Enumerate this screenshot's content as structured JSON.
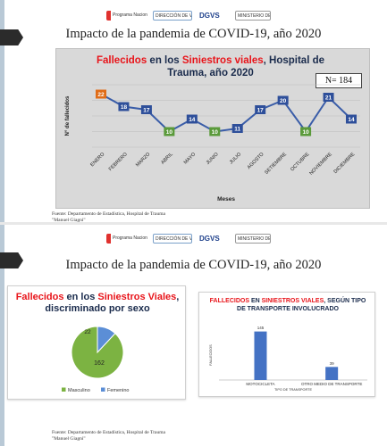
{
  "slide1": {
    "logos": [
      "Programa Nacional LESIONES DE CAUSAS EXTERNAS",
      "DIRECCIÓN DE VIGILANCIA DE ENFERMEDADES NO TRANSMISIBLES",
      "DGVS",
      "MINISTERIO DE SALUD"
    ],
    "title": "Impacto de la pandemia de COVID-19, año 2020",
    "footnote_line1": "Fuente: Departamento de Estadística, Hospital de Trauma",
    "footnote_line2": "\"Manuel Giagni\""
  },
  "slide2": {
    "logos": [
      "Programa Nacional LESIONES DE CAUSAS EXTERNAS",
      "DIRECCIÓN DE VIGILANCIA DE ENFERMEDADES NO TRANSMISIBLES",
      "DGVS",
      "MINISTERIO DE SALUD"
    ],
    "title": "Impacto de la pandemia de COVID-19, año 2020",
    "footnote_line1": "Fuente: Departamento de Estadística, Hospital de Trauma",
    "footnote_line2": "\"Manuel Giagni\""
  },
  "chart_data": [
    {
      "type": "line",
      "title_parts": {
        "red1": "Fallecidos",
        "navy1": " en los ",
        "red2": "Siniestros viales",
        "navy2": ", Hospital de Trauma, año 2020"
      },
      "badge": "N= 184",
      "xlabel": "Meses",
      "ylabel": "N° de fallecidos",
      "categories": [
        "ENERO",
        "FEBRERO",
        "MARZO",
        "ABRIL",
        "MAYO",
        "JUNIO",
        "JULIO",
        "AGOSTO",
        "SETIEMBRE",
        "OCTUBRE",
        "NOVIEMBRE",
        "DICIEMBRE"
      ],
      "values": [
        22,
        18,
        17,
        10,
        14,
        10,
        11,
        17,
        20,
        10,
        21,
        14
      ],
      "ylim": [
        5,
        25
      ],
      "grid": true,
      "colors": {
        "line": "#3a5da8",
        "marker": "#2e4f9a",
        "max": "#e06c17",
        "min": "#5a9a3a",
        "panel": "#d9d9d9"
      }
    },
    {
      "type": "pie",
      "title_parts": {
        "red1": "Fallecidos",
        "navy1": " en los ",
        "red2": "Siniestros Viales",
        "navy2": ", discriminado por sexo"
      },
      "categories": [
        "Masculino",
        "Femenino"
      ],
      "values": [
        162,
        22
      ],
      "colors": [
        "#7cb342",
        "#5b8ed6"
      ],
      "legend": "bottom"
    },
    {
      "type": "bar",
      "title_parts": {
        "red1": "FALLECIDOS",
        "navy1": " EN ",
        "red2": "SINIESTROS VIALES",
        "navy2": ", SEGÚN TIPO DE TRANSPORTE INVOLUCRADO"
      },
      "categories": [
        "MOTOCICLETA",
        "OTRO MEDIO DE TRANSPORTE"
      ],
      "values": [
        145,
        39
      ],
      "xlabel": "TIPO DE TRANSPORTE",
      "ylabel": "FALLECIDOS",
      "ylim": [
        0,
        160
      ],
      "colors": {
        "bar": "#4472c4"
      }
    }
  ]
}
